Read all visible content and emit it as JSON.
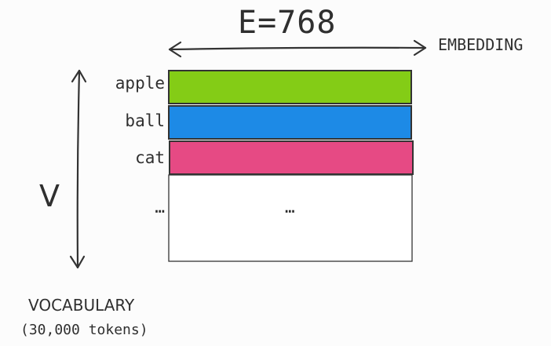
{
  "embedding": {
    "dimension_label": "E=768",
    "axis_label": "EMBEDDING"
  },
  "vocabulary": {
    "dimension_label": "V",
    "title": "VOCABULARY",
    "subtitle": "(30,000 tokens)"
  },
  "tokens": [
    {
      "label": "apple",
      "color": "#84cc16"
    },
    {
      "label": "ball",
      "color": "#1d8ae6"
    },
    {
      "label": "cat",
      "color": "#e64a84"
    }
  ],
  "more_tokens_label": "…",
  "more_rows_label": "…",
  "colors": {
    "stroke": "#333333",
    "text": "#2f2f2f",
    "background": "#fcfcfc"
  }
}
